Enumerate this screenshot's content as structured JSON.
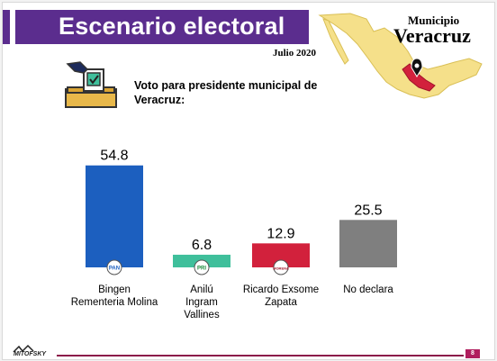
{
  "header": {
    "title": "Escenario electoral",
    "date": "Julio 2020",
    "municipality_label": "Municipio",
    "municipality_name": "Veracruz"
  },
  "question": "Voto para presidente municipal de Veracruz:",
  "brand": {
    "logo_text": "MITOFSKY",
    "page_number": "8",
    "accent": "#5b2d8e",
    "footer_accent": "#8b1a4a"
  },
  "chart_data": {
    "type": "bar",
    "title": "",
    "xlabel": "",
    "ylabel": "",
    "ylim": [
      0,
      60
    ],
    "grid": false,
    "categories": [
      [
        "Bingen",
        "Rementeria Molina"
      ],
      [
        "Anilú",
        "Ingram",
        "Vallines"
      ],
      [
        "Ricardo Exsome",
        "Zapata"
      ],
      [
        "No declara"
      ]
    ],
    "values": [
      54.8,
      6.8,
      12.9,
      25.5
    ],
    "colors": [
      "#1c5fbf",
      "#3fbf9b",
      "#d2213c",
      "#7f7f7f"
    ],
    "party_badges": [
      "PAN",
      "PRI",
      "MORENA",
      ""
    ]
  }
}
